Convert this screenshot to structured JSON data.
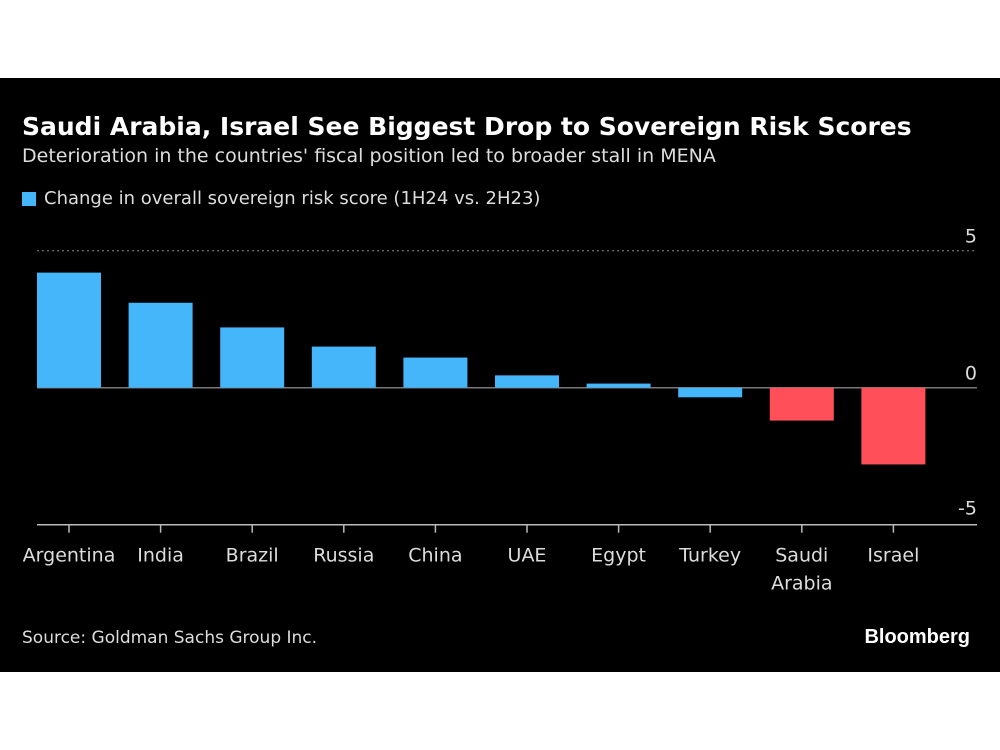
{
  "chart_data": {
    "type": "bar",
    "title": "Saudi Arabia, Israel See Biggest Drop to Sovereign Risk Scores",
    "subtitle": "Deterioration in the countries' fiscal position led to broader stall in MENA",
    "categories": [
      "Argentina",
      "India",
      "Brazil",
      "Russia",
      "China",
      "UAE",
      "Egypt",
      "Turkey",
      "Saudi Arabia",
      "Israel"
    ],
    "category_lines": [
      [
        "Argentina"
      ],
      [
        "India"
      ],
      [
        "Brazil"
      ],
      [
        "Russia"
      ],
      [
        "China"
      ],
      [
        "UAE"
      ],
      [
        "Egypt"
      ],
      [
        "Turkey"
      ],
      [
        "Saudi",
        "Arabia"
      ],
      [
        "Israel"
      ]
    ],
    "series": [
      {
        "name": "Change in overall sovereign risk score (1H24 vs. 2H23)",
        "values": [
          4.2,
          3.1,
          2.2,
          1.5,
          1.1,
          0.45,
          0.15,
          -0.35,
          -1.2,
          -2.8
        ]
      }
    ],
    "highlighted": [
      "Saudi Arabia",
      "Israel"
    ],
    "ylim": [
      -5,
      5
    ],
    "yticks": [
      5,
      0,
      -5
    ],
    "ytick_labels": [
      "5",
      "0",
      "-5"
    ],
    "ygrid_dotted_at": [
      5
    ],
    "legend_position": "top-left",
    "colors": {
      "bar": "#45b6fa",
      "highlight": "#ff505a",
      "background": "#000000"
    },
    "source": "Source: Goldman Sachs Group Inc.",
    "logo": "Bloomberg"
  }
}
